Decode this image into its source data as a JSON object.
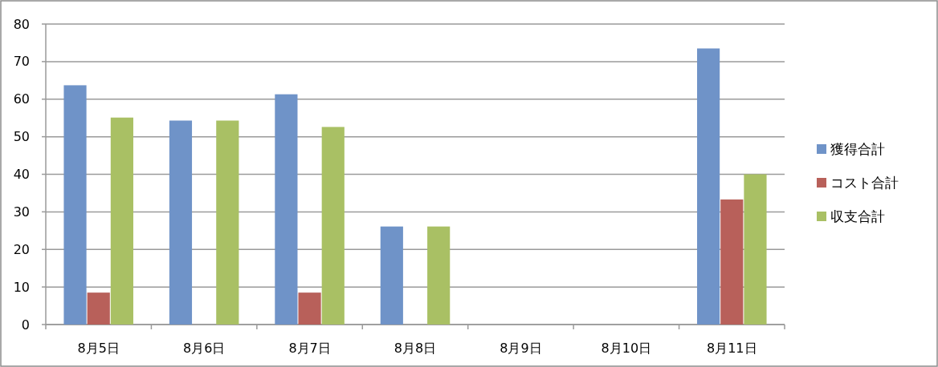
{
  "chart_data": {
    "type": "bar",
    "categories": [
      "8月5日",
      "8月6日",
      "8月7日",
      "8月8日",
      "8月9日",
      "8月10日",
      "8月11日"
    ],
    "series": [
      {
        "name": "獲得合計",
        "color": "#6f93c8",
        "values": [
          63.7,
          54.3,
          61.3,
          26.1,
          null,
          null,
          73.5
        ]
      },
      {
        "name": "コスト合計",
        "color": "#b8605a",
        "values": [
          8.5,
          null,
          8.5,
          null,
          null,
          null,
          33.3
        ]
      },
      {
        "name": "収支合計",
        "color": "#a9c064",
        "values": [
          55.1,
          54.3,
          52.6,
          26.1,
          null,
          null,
          40
        ]
      }
    ],
    "ylim": [
      0,
      80
    ],
    "yticks": [
      0,
      10,
      20,
      30,
      40,
      50,
      60,
      70,
      80
    ],
    "grid": "y",
    "legend": "right"
  }
}
